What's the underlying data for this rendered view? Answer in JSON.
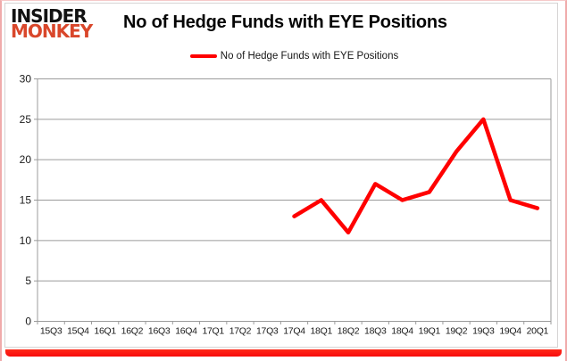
{
  "header": {
    "logo_line1": "INSIDER",
    "logo_line2": "MONKEY",
    "title": "No of Hedge Funds with EYE Positions"
  },
  "legend": {
    "label": "No of Hedge Funds with EYE Positions"
  },
  "colors": {
    "line": "#ff0000",
    "logo_accent": "#d9472b",
    "grid": "#9b9b9b",
    "axis_text": "#1a1a1a",
    "accent_bar": "#f80b0b",
    "frame_border": "#d6d4d4"
  },
  "chart_data": {
    "type": "line",
    "title": "No of Hedge Funds with EYE Positions",
    "categories": [
      "15Q3",
      "15Q4",
      "16Q1",
      "16Q2",
      "16Q3",
      "16Q4",
      "17Q1",
      "17Q2",
      "17Q3",
      "17Q4",
      "18Q1",
      "18Q2",
      "18Q3",
      "18Q4",
      "19Q1",
      "19Q2",
      "19Q3",
      "19Q4",
      "20Q1"
    ],
    "series": [
      {
        "name": "No of Hedge Funds with EYE Positions",
        "color": "#ff0000",
        "values": [
          null,
          null,
          null,
          null,
          null,
          null,
          null,
          null,
          null,
          13,
          15,
          11,
          17,
          15,
          16,
          21,
          25,
          15,
          14
        ]
      }
    ],
    "xlabel": "",
    "ylabel": "",
    "ylim": [
      0,
      30
    ],
    "ytick_step": 5,
    "grid": true,
    "legend_position": "top-center"
  }
}
